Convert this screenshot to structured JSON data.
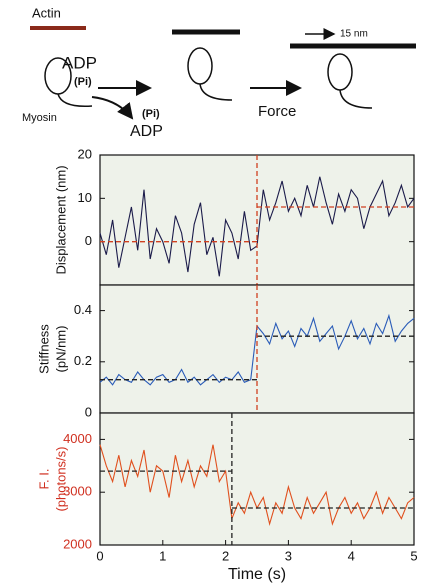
{
  "diagram": {
    "actin": "Actin",
    "adp_top": "ADP",
    "pi_top": "(Pi)",
    "myosin": "Myosin",
    "pi_release": "(Pi)",
    "adp_release": "ADP",
    "force": "Force",
    "step": "15 nm"
  },
  "chart_data": [
    {
      "type": "line",
      "ylabel": [
        "Displacement (nm)"
      ],
      "xlim": [
        0,
        5
      ],
      "ylim": [
        -10,
        20
      ],
      "yticks": [
        0,
        10,
        20
      ],
      "x": [
        0,
        0.1,
        0.2,
        0.3,
        0.4,
        0.5,
        0.6,
        0.7,
        0.8,
        0.9,
        1,
        1.1,
        1.2,
        1.3,
        1.4,
        1.5,
        1.6,
        1.7,
        1.8,
        1.9,
        2,
        2.1,
        2.2,
        2.3,
        2.4,
        2.5,
        2.6,
        2.7,
        2.8,
        2.9,
        3,
        3.1,
        3.2,
        3.3,
        3.4,
        3.5,
        3.6,
        3.7,
        3.8,
        3.9,
        4,
        4.1,
        4.2,
        4.3,
        4.4,
        4.5,
        4.6,
        4.7,
        4.8,
        4.9,
        5
      ],
      "series": [
        {
          "color": "#1b1b4a",
          "values": [
            2,
            -3,
            5,
            -6,
            1,
            8,
            -2,
            12,
            -4,
            3,
            0,
            -5,
            6,
            2,
            -7,
            4,
            9,
            -3,
            1,
            -8,
            5,
            2,
            -4,
            7,
            -2,
            -1,
            12,
            5,
            9,
            14,
            7,
            10,
            6,
            13,
            8,
            15,
            9,
            4,
            11,
            7,
            12,
            10,
            3,
            8,
            11,
            14,
            6,
            9,
            13,
            8,
            10
          ]
        }
      ],
      "fits": [
        {
          "x": [
            0,
            2.5
          ],
          "values": [
            0,
            0
          ]
        },
        {
          "x": [
            2.5,
            5
          ],
          "values": [
            8,
            8
          ]
        }
      ],
      "fit_color": "#d04020",
      "vline": {
        "x": 2.5,
        "color": "#d04020"
      }
    },
    {
      "type": "line",
      "ylabel": [
        "Stiffness",
        "(pN/nm)"
      ],
      "xlim": [
        0,
        5
      ],
      "ylim": [
        0,
        0.5
      ],
      "yticks": [
        0,
        0.2,
        0.4
      ],
      "x": [
        0,
        0.1,
        0.2,
        0.3,
        0.4,
        0.5,
        0.6,
        0.7,
        0.8,
        0.9,
        1,
        1.1,
        1.2,
        1.3,
        1.4,
        1.5,
        1.6,
        1.7,
        1.8,
        1.9,
        2,
        2.1,
        2.2,
        2.3,
        2.4,
        2.5,
        2.6,
        2.7,
        2.8,
        2.9,
        3,
        3.1,
        3.2,
        3.3,
        3.4,
        3.5,
        3.6,
        3.7,
        3.8,
        3.9,
        4,
        4.1,
        4.2,
        4.3,
        4.4,
        4.5,
        4.6,
        4.7,
        4.8,
        4.9,
        5
      ],
      "series": [
        {
          "color": "#2a5cb8",
          "values": [
            0.12,
            0.14,
            0.11,
            0.15,
            0.13,
            0.12,
            0.16,
            0.13,
            0.11,
            0.14,
            0.15,
            0.12,
            0.13,
            0.17,
            0.12,
            0.14,
            0.11,
            0.13,
            0.15,
            0.12,
            0.14,
            0.13,
            0.16,
            0.12,
            0.13,
            0.34,
            0.31,
            0.27,
            0.35,
            0.29,
            0.32,
            0.26,
            0.33,
            0.3,
            0.37,
            0.28,
            0.31,
            0.34,
            0.25,
            0.3,
            0.36,
            0.29,
            0.33,
            0.27,
            0.35,
            0.31,
            0.38,
            0.28,
            0.32,
            0.35,
            0.37
          ]
        }
      ],
      "fits": [
        {
          "x": [
            0,
            2.5
          ],
          "values": [
            0.13,
            0.13
          ]
        },
        {
          "x": [
            2.5,
            5
          ],
          "values": [
            0.3,
            0.3
          ]
        }
      ],
      "fit_color": "#222222",
      "vline": {
        "x": 2.5,
        "color": "#d04020"
      }
    },
    {
      "type": "line",
      "ylabel": [
        "F. I.",
        "(photons/s)"
      ],
      "label_color": "#d03020",
      "xlim": [
        0,
        5
      ],
      "ylim": [
        2000,
        4500
      ],
      "yticks": [
        2000,
        3000,
        4000
      ],
      "xticks": [
        0,
        1,
        2,
        3,
        4,
        5
      ],
      "xlabel": "Time (s)",
      "x": [
        0,
        0.1,
        0.2,
        0.3,
        0.4,
        0.5,
        0.6,
        0.7,
        0.8,
        0.9,
        1,
        1.1,
        1.2,
        1.3,
        1.4,
        1.5,
        1.6,
        1.7,
        1.8,
        1.9,
        2,
        2.1,
        2.2,
        2.3,
        2.4,
        2.5,
        2.6,
        2.7,
        2.8,
        2.9,
        3,
        3.1,
        3.2,
        3.3,
        3.4,
        3.5,
        3.6,
        3.7,
        3.8,
        3.9,
        4,
        4.1,
        4.2,
        4.3,
        4.4,
        4.5,
        4.6,
        4.7,
        4.8,
        4.9,
        5
      ],
      "series": [
        {
          "color": "#e0501e",
          "values": [
            3900,
            3500,
            3200,
            3700,
            3100,
            3600,
            3300,
            3800,
            3000,
            3500,
            3400,
            2900,
            3700,
            3200,
            3600,
            3100,
            3500,
            3300,
            3900,
            3200,
            3400,
            2500,
            2800,
            2600,
            3000,
            2700,
            2900,
            2400,
            2800,
            2600,
            3100,
            2700,
            2500,
            2900,
            2600,
            2800,
            3000,
            2400,
            2700,
            2900,
            2600,
            2800,
            2500,
            2700,
            3000,
            2600,
            2900,
            2700,
            2500,
            2800,
            2900
          ]
        }
      ],
      "fits": [
        {
          "x": [
            0,
            2.1
          ],
          "values": [
            3400,
            3400
          ]
        },
        {
          "x": [
            2.1,
            5
          ],
          "values": [
            2700,
            2700
          ]
        }
      ],
      "fit_color": "#222222",
      "vline": {
        "x": 2.1,
        "color": "#222222"
      }
    }
  ]
}
